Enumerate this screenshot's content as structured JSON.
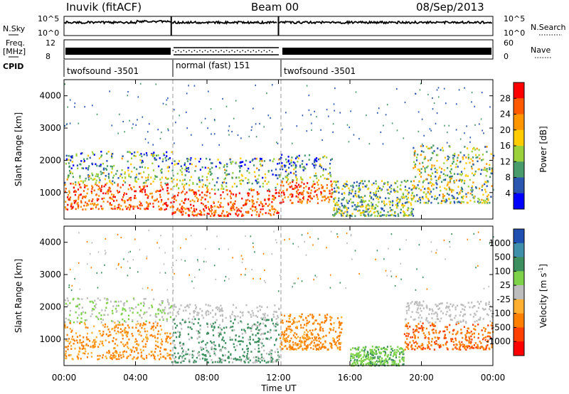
{
  "header": {
    "station": "Inuvik (fitACF)",
    "beam": "Beam 00",
    "date": "08/Sep/2013"
  },
  "noise_panel": {
    "left_label": "N.Sky",
    "left_ticks": [
      "10^5",
      "10^0"
    ],
    "right_label": "N.Search",
    "right_ticks": [
      "10^5",
      "10^0"
    ]
  },
  "freq_panel": {
    "left_label_top": "Freq.",
    "left_label_unit": "[MHz]",
    "left_ticks": [
      "12",
      "8"
    ],
    "right_label": "Nave",
    "right_ticks": [
      "60",
      "0"
    ]
  },
  "cpid": {
    "label": "CPID",
    "segments": [
      {
        "name": "twofsound -3501",
        "start_hour": 0,
        "end_hour": 6
      },
      {
        "name": "normal (fast) 151",
        "start_hour": 6,
        "end_hour": 12
      },
      {
        "name": "twofsound -3501",
        "start_hour": 12,
        "end_hour": 24
      }
    ]
  },
  "xaxis": {
    "label": "Time UT",
    "ticks": [
      "00:00",
      "04:00",
      "08:00",
      "12:00",
      "16:00",
      "20:00",
      "00:00"
    ],
    "range_hours": [
      0,
      24
    ]
  },
  "chart_data": [
    {
      "type": "heatmap",
      "title": "",
      "xlabel": "Time UT",
      "ylabel": "Slant Range [km]",
      "x_range_hours": [
        0,
        24
      ],
      "y_range_km": [
        180,
        4500
      ],
      "y_ticks": [
        1000,
        2000,
        3000,
        4000
      ],
      "colorbar_label": "Power [dB]",
      "colorbar_ticks": [
        "28",
        "24",
        "20",
        "16",
        "12",
        "8",
        "4"
      ],
      "colorbar_colors": [
        "#ff0000",
        "#ff5a00",
        "#ff9600",
        "#ffcc00",
        "#9bd23c",
        "#4a9b6b",
        "#2a56b0",
        "#0000ff"
      ],
      "scatter_regions": [
        {
          "t_start": 0.0,
          "t_end": 6.0,
          "range_low": 500,
          "range_high": 2300,
          "level": "high"
        },
        {
          "t_start": 6.0,
          "t_end": 12.0,
          "range_low": 300,
          "range_high": 2100,
          "level": "high"
        },
        {
          "t_start": 12.0,
          "t_end": 15.0,
          "range_low": 700,
          "range_high": 2200,
          "level": "high"
        },
        {
          "t_start": 15.0,
          "t_end": 19.5,
          "range_low": 300,
          "range_high": 1400,
          "level": "low"
        },
        {
          "t_start": 19.5,
          "t_end": 24.0,
          "range_low": 700,
          "range_high": 2500,
          "level": "medium"
        }
      ]
    },
    {
      "type": "heatmap",
      "title": "",
      "xlabel": "Time UT",
      "ylabel": "Slant Range [km]",
      "x_range_hours": [
        0,
        24
      ],
      "y_range_km": [
        180,
        4500
      ],
      "y_ticks": [
        1000,
        2000,
        3000,
        4000
      ],
      "colorbar_label": "Velocity [m s^-1]",
      "colorbar_ticks": [
        "1000",
        "500",
        "100",
        "25",
        "-25",
        "-100",
        "-500",
        "-1000"
      ],
      "colorbar_colors": [
        "#1f4fb0",
        "#3f8faa",
        "#3d8f5f",
        "#7ed24a",
        "#bdbdbd",
        "#ffb030",
        "#ff8000",
        "#ff4000",
        "#ff0000"
      ],
      "scatter_regions": [
        {
          "t_start": 0.0,
          "t_end": 6.0,
          "range_low": 400,
          "range_high": 2300,
          "velocity": "-100 to -500"
        },
        {
          "t_start": 6.0,
          "t_end": 12.0,
          "range_low": 300,
          "range_high": 2100,
          "velocity": "25 to 100"
        },
        {
          "t_start": 12.0,
          "t_end": 15.5,
          "range_low": 700,
          "range_high": 1800,
          "velocity": "-100 to -500"
        },
        {
          "t_start": 16.0,
          "t_end": 19.0,
          "range_low": 200,
          "range_high": 800,
          "velocity": "100 to 500"
        },
        {
          "t_start": 19.0,
          "t_end": 24.0,
          "range_low": 700,
          "range_high": 2200,
          "velocity": "-25 to -500"
        }
      ]
    }
  ]
}
